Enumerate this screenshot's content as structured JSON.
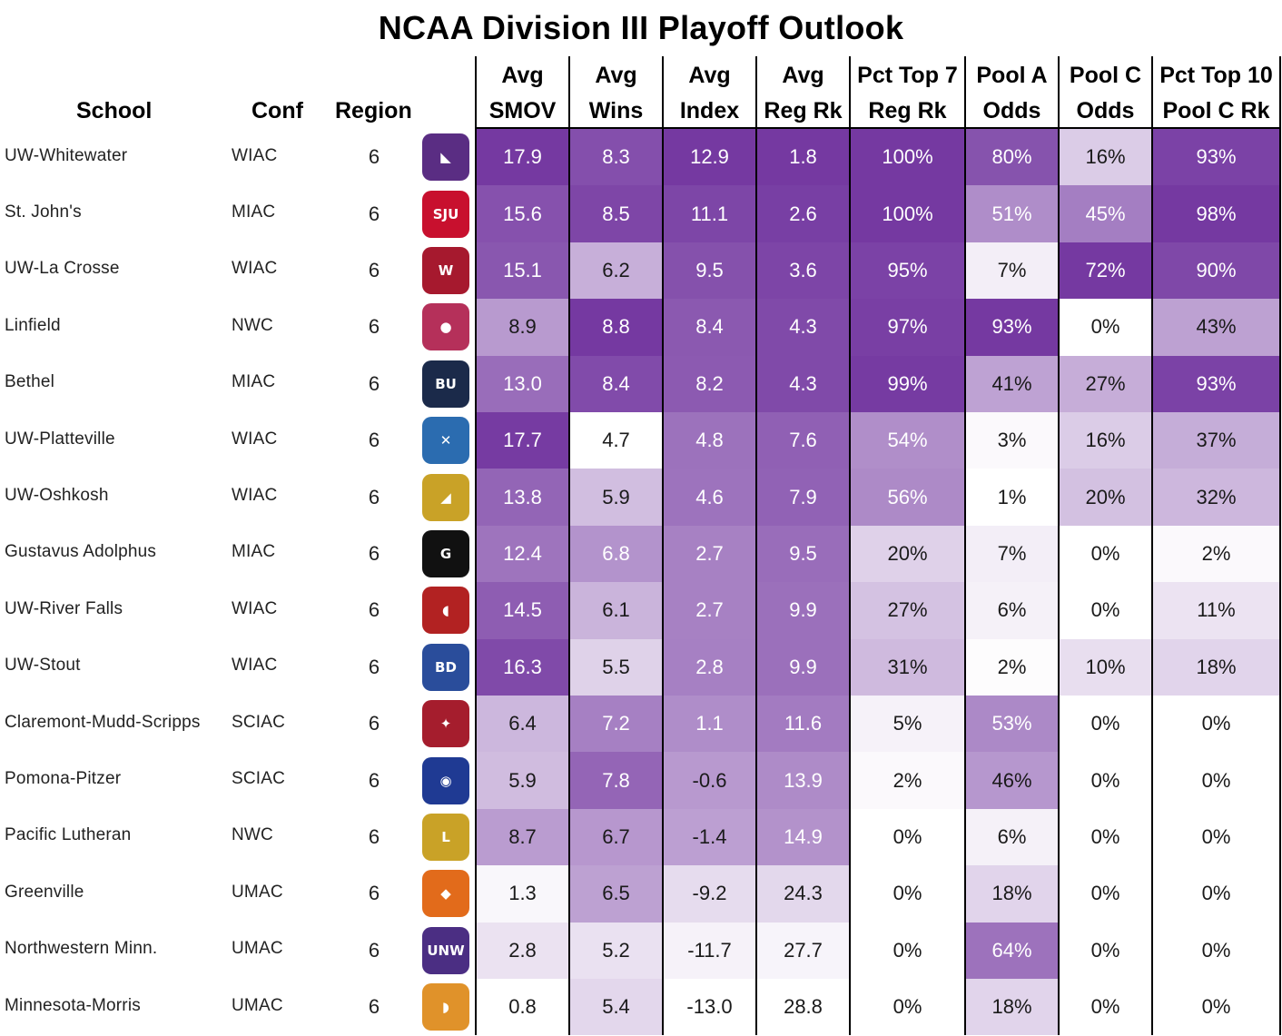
{
  "title": "NCAA Division III Playoff Outlook",
  "colors": {
    "heat_min": "#ffffff",
    "heat_max": "#6a2a9a",
    "text": "#000000"
  },
  "chart_data": {
    "type": "table",
    "title": "NCAA Division III Playoff Outlook",
    "columns": [
      {
        "key": "school",
        "label": [
          "School"
        ]
      },
      {
        "key": "conf",
        "label": [
          "Conf"
        ]
      },
      {
        "key": "region",
        "label": [
          "Region"
        ]
      },
      {
        "key": "smov",
        "label": [
          "Avg",
          "SMOV"
        ]
      },
      {
        "key": "wins",
        "label": [
          "Avg",
          "Wins"
        ]
      },
      {
        "key": "index",
        "label": [
          "Avg",
          "Index"
        ]
      },
      {
        "key": "regrk",
        "label": [
          "Avg",
          "Reg Rk"
        ]
      },
      {
        "key": "top7",
        "label": [
          "Pct Top 7",
          "Reg Rk"
        ]
      },
      {
        "key": "poola",
        "label": [
          "Pool A",
          "Odds"
        ]
      },
      {
        "key": "poolc",
        "label": [
          "Pool C",
          "Odds"
        ]
      },
      {
        "key": "top10",
        "label": [
          "Pct Top 10",
          "Pool C Rk"
        ]
      }
    ],
    "rows": [
      {
        "school": "UW-Whitewater",
        "conf": "WIAC",
        "region": "6",
        "logo": "warhawk-icon",
        "smov": "17.9",
        "wins": "8.3",
        "index": "12.9",
        "regrk": "1.8",
        "top7": "100%",
        "poola": "80%",
        "poolc": "16%",
        "top10": "93%"
      },
      {
        "school": "St. John's",
        "conf": "MIAC",
        "region": "6",
        "logo": "sju-icon",
        "smov": "15.6",
        "wins": "8.5",
        "index": "11.1",
        "regrk": "2.6",
        "top7": "100%",
        "poola": "51%",
        "poolc": "45%",
        "top10": "98%"
      },
      {
        "school": "UW-La Crosse",
        "conf": "WIAC",
        "region": "6",
        "logo": "eagle-icon",
        "smov": "15.1",
        "wins": "6.2",
        "index": "9.5",
        "regrk": "3.6",
        "top7": "95%",
        "poola": "7%",
        "poolc": "72%",
        "top10": "90%"
      },
      {
        "school": "Linfield",
        "conf": "NWC",
        "region": "6",
        "logo": "wildcat-icon",
        "smov": "8.9",
        "wins": "8.8",
        "index": "8.4",
        "regrk": "4.3",
        "top7": "97%",
        "poola": "93%",
        "poolc": "0%",
        "top10": "43%"
      },
      {
        "school": "Bethel",
        "conf": "MIAC",
        "region": "6",
        "logo": "bu-icon",
        "smov": "13.0",
        "wins": "8.4",
        "index": "8.2",
        "regrk": "4.3",
        "top7": "99%",
        "poola": "41%",
        "poolc": "27%",
        "top10": "93%"
      },
      {
        "school": "UW-Platteville",
        "conf": "WIAC",
        "region": "6",
        "logo": "pickaxes-icon",
        "smov": "17.7",
        "wins": "4.7",
        "index": "4.8",
        "regrk": "7.6",
        "top7": "54%",
        "poola": "3%",
        "poolc": "16%",
        "top10": "37%"
      },
      {
        "school": "UW-Oshkosh",
        "conf": "WIAC",
        "region": "6",
        "logo": "titan-icon",
        "smov": "13.8",
        "wins": "5.9",
        "index": "4.6",
        "regrk": "7.9",
        "top7": "56%",
        "poola": "1%",
        "poolc": "20%",
        "top10": "32%"
      },
      {
        "school": "Gustavus Adolphus",
        "conf": "MIAC",
        "region": "6",
        "logo": "shield-g-icon",
        "smov": "12.4",
        "wins": "6.8",
        "index": "2.7",
        "regrk": "9.5",
        "top7": "20%",
        "poola": "7%",
        "poolc": "0%",
        "top10": "2%"
      },
      {
        "school": "UW-River Falls",
        "conf": "WIAC",
        "region": "6",
        "logo": "falcon-icon",
        "smov": "14.5",
        "wins": "6.1",
        "index": "2.7",
        "regrk": "9.9",
        "top7": "27%",
        "poola": "6%",
        "poolc": "0%",
        "top10": "11%"
      },
      {
        "school": "UW-Stout",
        "conf": "WIAC",
        "region": "6",
        "logo": "blue-devils-icon",
        "smov": "16.3",
        "wins": "5.5",
        "index": "2.8",
        "regrk": "9.9",
        "top7": "31%",
        "poola": "2%",
        "poolc": "10%",
        "top10": "18%"
      },
      {
        "school": "Claremont-Mudd-Scripps",
        "conf": "SCIAC",
        "region": "6",
        "logo": "stag-icon",
        "smov": "6.4",
        "wins": "7.2",
        "index": "1.1",
        "regrk": "11.6",
        "top7": "5%",
        "poola": "53%",
        "poolc": "0%",
        "top10": "0%"
      },
      {
        "school": "Pomona-Pitzer",
        "conf": "SCIAC",
        "region": "6",
        "logo": "sagehen-icon",
        "smov": "5.9",
        "wins": "7.8",
        "index": "-0.6",
        "regrk": "13.9",
        "top7": "2%",
        "poola": "46%",
        "poolc": "0%",
        "top10": "0%"
      },
      {
        "school": "Pacific Lutheran",
        "conf": "NWC",
        "region": "6",
        "logo": "lutes-icon",
        "smov": "8.7",
        "wins": "6.7",
        "index": "-1.4",
        "regrk": "14.9",
        "top7": "0%",
        "poola": "6%",
        "poolc": "0%",
        "top10": "0%"
      },
      {
        "school": "Greenville",
        "conf": "UMAC",
        "region": "6",
        "logo": "panther-icon",
        "smov": "1.3",
        "wins": "6.5",
        "index": "-9.2",
        "regrk": "24.3",
        "top7": "0%",
        "poola": "18%",
        "poolc": "0%",
        "top10": "0%"
      },
      {
        "school": "Northwestern Minn.",
        "conf": "UMAC",
        "region": "6",
        "logo": "unw-icon",
        "smov": "2.8",
        "wins": "5.2",
        "index": "-11.7",
        "regrk": "27.7",
        "top7": "0%",
        "poola": "64%",
        "poolc": "0%",
        "top10": "0%"
      },
      {
        "school": "Minnesota-Morris",
        "conf": "UMAC",
        "region": "6",
        "logo": "cougar-icon",
        "smov": "0.8",
        "wins": "5.4",
        "index": "-13.0",
        "regrk": "28.8",
        "top7": "0%",
        "poola": "18%",
        "poolc": "0%",
        "top10": "0%"
      }
    ]
  }
}
